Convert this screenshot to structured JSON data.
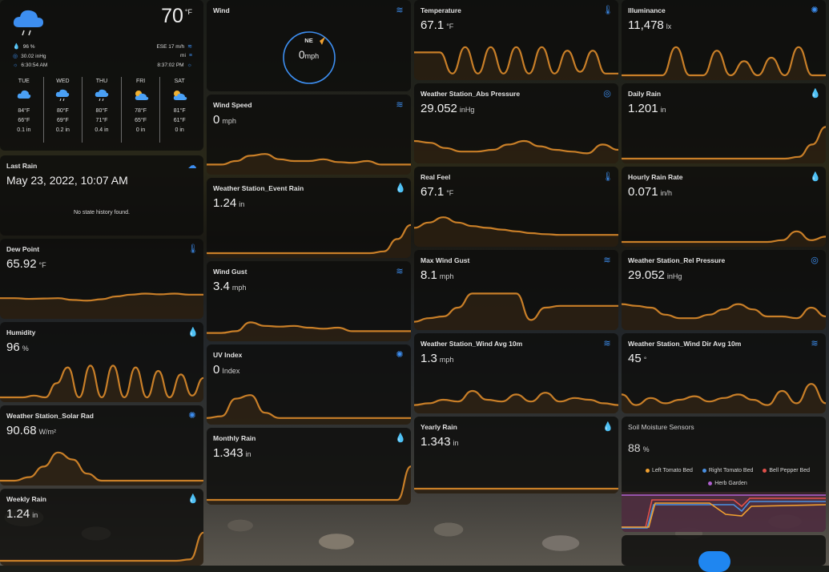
{
  "weather": {
    "temperature": "70",
    "temperature_unit": "°F",
    "humidity": "96 %",
    "pressure": "30.02 inHg",
    "sunrise": "6:30:54 AM",
    "wind": "ESE 17 m/h",
    "visibility": "mi",
    "sunset": "8:37:02 PM",
    "forecast": [
      {
        "day": "TUE",
        "icon": "cloudy-icon",
        "hi": "84°F",
        "lo": "66°F",
        "precip": "0.1 in"
      },
      {
        "day": "WED",
        "icon": "rain-icon",
        "hi": "80°F",
        "lo": "69°F",
        "precip": "0.2 in"
      },
      {
        "day": "THU",
        "icon": "rain-icon",
        "hi": "80°F",
        "lo": "71°F",
        "precip": "0.4 in"
      },
      {
        "day": "FRI",
        "icon": "partly-cloudy-icon",
        "hi": "78°F",
        "lo": "65°F",
        "precip": "0 in"
      },
      {
        "day": "SAT",
        "icon": "partly-cloudy-icon",
        "hi": "81°F",
        "lo": "61°F",
        "precip": "0 in"
      }
    ]
  },
  "last_rain": {
    "title": "Last Rain",
    "value": "May 23, 2022, 10:07 AM",
    "note": "No state history found."
  },
  "wind_compass": {
    "title": "Wind",
    "direction": "NE",
    "speed": "0",
    "unit": "mph"
  },
  "sensors": {
    "dew_point": {
      "title": "Dew Point",
      "value": "65.92",
      "unit": "°F"
    },
    "humidity": {
      "title": "Humidity",
      "value": "96",
      "unit": "%"
    },
    "solar_rad": {
      "title": "Weather Station_Solar Rad",
      "value": "90.68",
      "unit": "W/m²"
    },
    "weekly_rain": {
      "title": "Weekly Rain",
      "value": "1.24",
      "unit": "in"
    },
    "wind_speed": {
      "title": "Wind Speed",
      "value": "0",
      "unit": "mph"
    },
    "event_rain": {
      "title": "Weather Station_Event Rain",
      "value": "1.24",
      "unit": "in"
    },
    "wind_gust": {
      "title": "Wind Gust",
      "value": "3.4",
      "unit": "mph"
    },
    "uv_index": {
      "title": "UV Index",
      "value": "0",
      "unit": "Index"
    },
    "monthly_rain": {
      "title": "Monthly Rain",
      "value": "1.343",
      "unit": "in"
    },
    "temperature": {
      "title": "Temperature",
      "value": "67.1",
      "unit": "°F"
    },
    "abs_pressure": {
      "title": "Weather Station_Abs Pressure",
      "value": "29.052",
      "unit": "inHg"
    },
    "real_feel": {
      "title": "Real Feel",
      "value": "67.1",
      "unit": "°F"
    },
    "max_wind_gust": {
      "title": "Max Wind Gust",
      "value": "8.1",
      "unit": "mph"
    },
    "wind_avg": {
      "title": "Weather Station_Wind Avg 10m",
      "value": "1.3",
      "unit": "mph"
    },
    "yearly_rain": {
      "title": "Yearly Rain",
      "value": "1.343",
      "unit": "in"
    },
    "illuminance": {
      "title": "Illuminance",
      "value": "11,478",
      "unit": "lx"
    },
    "daily_rain": {
      "title": "Daily Rain",
      "value": "1.201",
      "unit": "in"
    },
    "hourly_rain": {
      "title": "Hourly Rain Rate",
      "value": "0.071",
      "unit": "in/h"
    },
    "rel_pressure": {
      "title": "Weather Station_Rel Pressure",
      "value": "29.052",
      "unit": "inHg"
    },
    "wind_dir": {
      "title": "Weather Station_Wind Dir Avg 10m",
      "value": "45",
      "unit": "°"
    }
  },
  "soil": {
    "title": "Soil Moisture Sensors",
    "value": "88",
    "unit": "%",
    "legend": [
      {
        "name": "Left Tomato Bed",
        "color": "#f0a030"
      },
      {
        "name": "Right Tomato Bed",
        "color": "#4a90e2"
      },
      {
        "name": "Bell Pepper Bed",
        "color": "#e0504a"
      },
      {
        "name": "Herb Garden",
        "color": "#b060d0"
      }
    ]
  },
  "colors": {
    "accent": "#3d8ef0",
    "line": "#c97f28"
  }
}
